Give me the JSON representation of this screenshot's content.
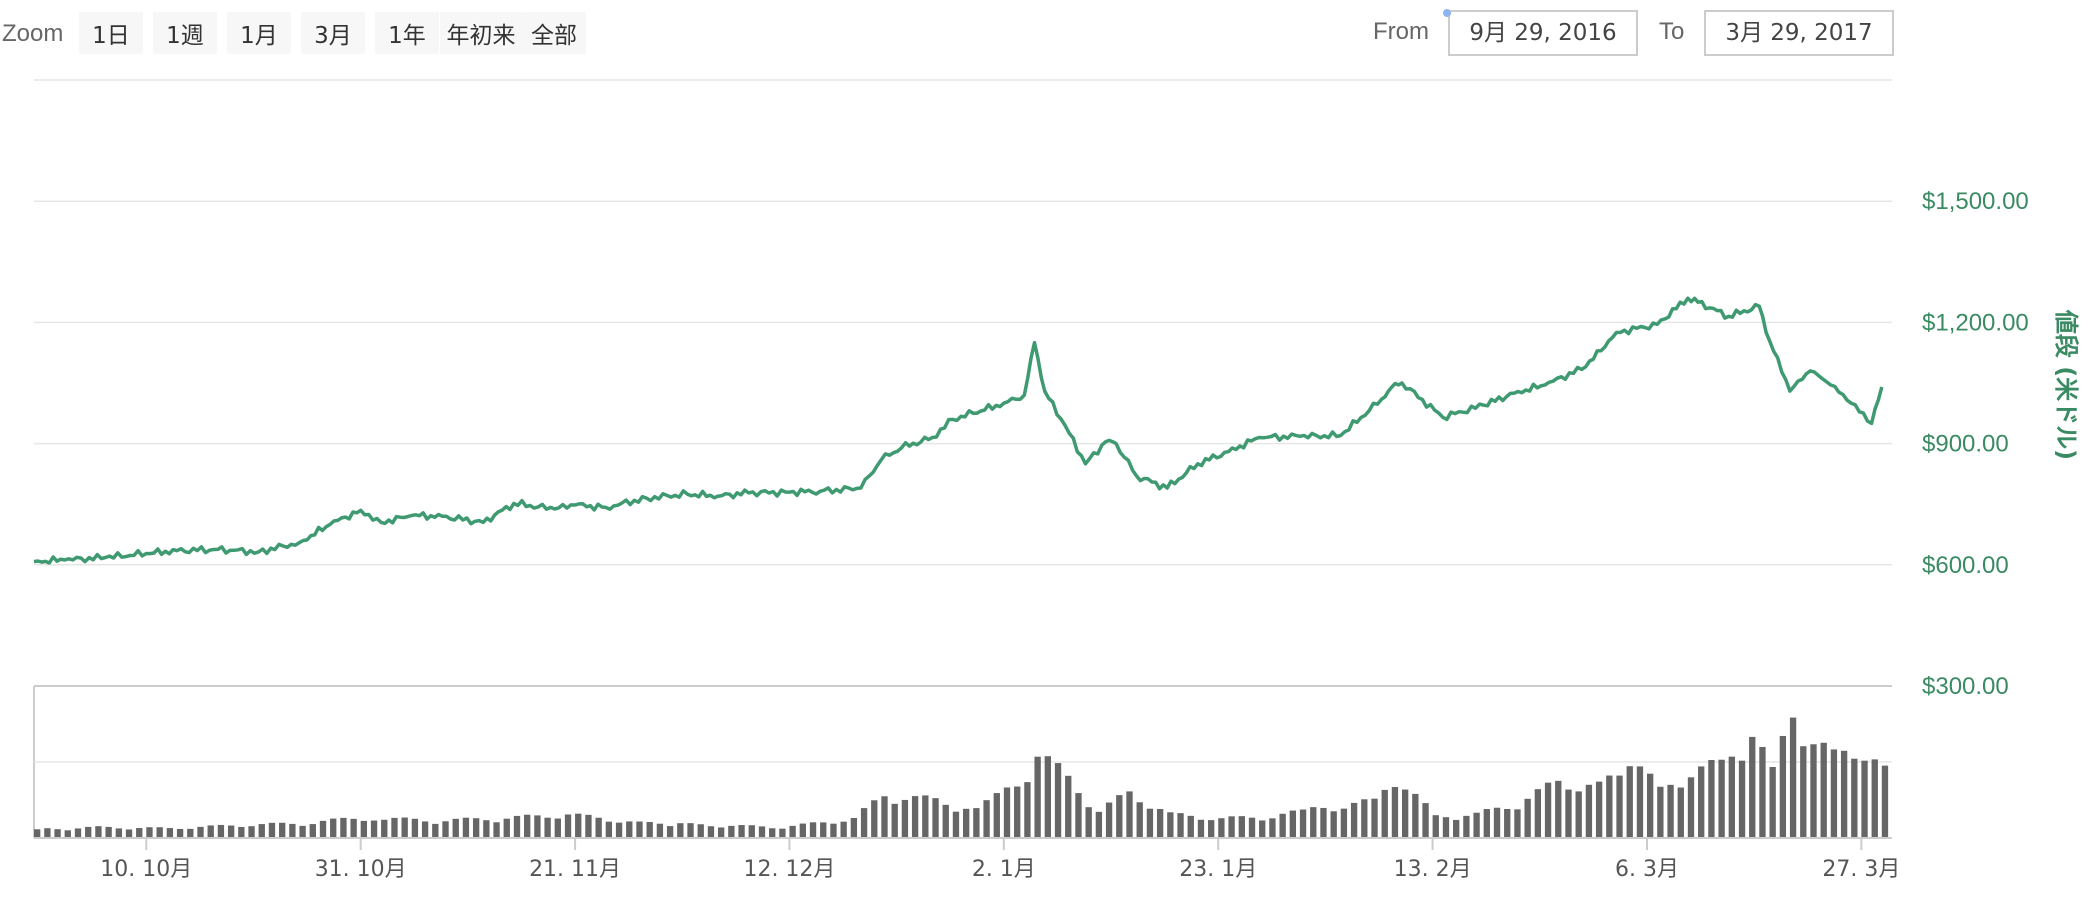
{
  "toolbar": {
    "zoom_label": "Zoom",
    "zoom_buttons": [
      "1日",
      "1週",
      "1月",
      "3月",
      "1年",
      "年初来",
      "全部"
    ],
    "from_label": "From",
    "from_value": "9月 29, 2016",
    "to_label": "To",
    "to_value": "3月 29, 2017"
  },
  "colors": {
    "price_line": "#3f9a72",
    "volume_bars": "#666666",
    "grid": "#e6e6e6",
    "axis_text": "#3a8a63"
  },
  "chart_data": {
    "type": "line",
    "title": "",
    "ylabel": "値段 (米ドル)",
    "y_ticks": [
      "$300.00",
      "$600.00",
      "$900.00",
      "$1,200.00",
      "$1,500.00"
    ],
    "x_ticks": [
      "10. 10月",
      "31. 10月",
      "21. 11月",
      "12. 12月",
      "2. 1月",
      "23. 1月",
      "13. 2月",
      "6. 3月",
      "27. 3月"
    ],
    "ylim": [
      300,
      1800
    ],
    "xlim": [
      "2016-09-29",
      "2017-03-30"
    ],
    "grid": true,
    "series": [
      {
        "x": [
          "2016-09-29",
          "2016-10-02",
          "2016-10-06",
          "2016-10-10",
          "2016-10-13",
          "2016-10-17",
          "2016-10-21",
          "2016-10-25",
          "2016-10-28",
          "2016-10-31",
          "2016-11-02",
          "2016-11-05",
          "2016-11-08",
          "2016-11-12",
          "2016-11-15",
          "2016-11-19",
          "2016-11-21",
          "2016-11-24",
          "2016-11-28",
          "2016-12-02",
          "2016-12-05",
          "2016-12-08",
          "2016-12-12",
          "2016-12-15",
          "2016-12-19",
          "2016-12-21",
          "2016-12-23",
          "2016-12-26",
          "2016-12-28",
          "2016-12-30",
          "2017-01-02",
          "2017-01-04",
          "2017-01-05",
          "2017-01-06",
          "2017-01-08",
          "2017-01-10",
          "2017-01-12",
          "2017-01-13",
          "2017-01-15",
          "2017-01-18",
          "2017-01-21",
          "2017-01-24",
          "2017-01-27",
          "2017-01-31",
          "2017-02-04",
          "2017-02-08",
          "2017-02-09",
          "2017-02-10",
          "2017-02-14",
          "2017-02-18",
          "2017-02-21",
          "2017-02-24",
          "2017-02-28",
          "2017-03-03",
          "2017-03-07",
          "2017-03-10",
          "2017-03-11",
          "2017-03-14",
          "2017-03-17",
          "2017-03-18",
          "2017-03-20",
          "2017-03-22",
          "2017-03-24",
          "2017-03-26",
          "2017-03-28",
          "2017-03-29"
        ],
        "values": [
          608,
          612,
          618,
          628,
          635,
          638,
          632,
          655,
          700,
          735,
          705,
          722,
          720,
          705,
          752,
          738,
          748,
          742,
          765,
          775,
          770,
          778,
          780,
          782,
          790,
          860,
          890,
          915,
          960,
          975,
          1000,
          1020,
          1150,
          1030,
          945,
          850,
          905,
          900,
          820,
          790,
          850,
          880,
          915,
          918,
          920,
          1010,
          1040,
          1050,
          965,
          995,
          1025,
          1045,
          1090,
          1175,
          1195,
          1260,
          1250,
          1215,
          1240,
          1155,
          1030,
          1080,
          1045,
          1000,
          950,
          1040
        ]
      }
    ],
    "volume_series": {
      "x": [
        "2016-09-29",
        "2016-10-05",
        "2016-10-12",
        "2016-10-19",
        "2016-10-26",
        "2016-10-31",
        "2016-11-06",
        "2016-11-13",
        "2016-11-20",
        "2016-11-27",
        "2016-12-04",
        "2016-12-11",
        "2016-12-18",
        "2016-12-21",
        "2016-12-26",
        "2016-12-30",
        "2017-01-03",
        "2017-01-05",
        "2017-01-08",
        "2017-01-11",
        "2017-01-14",
        "2017-01-18",
        "2017-01-23",
        "2017-01-28",
        "2017-02-02",
        "2017-02-07",
        "2017-02-09",
        "2017-02-13",
        "2017-02-17",
        "2017-02-21",
        "2017-02-25",
        "2017-03-01",
        "2017-03-04",
        "2017-03-07",
        "2017-03-10",
        "2017-03-13",
        "2017-03-16",
        "2017-03-18",
        "2017-03-20",
        "2017-03-22",
        "2017-03-24",
        "2017-03-27",
        "2017-03-29"
      ],
      "values": [
        8,
        10,
        9,
        12,
        14,
        20,
        16,
        18,
        22,
        14,
        12,
        10,
        18,
        40,
        35,
        26,
        50,
        80,
        55,
        25,
        42,
        22,
        18,
        20,
        28,
        34,
        58,
        20,
        22,
        32,
        52,
        48,
        76,
        44,
        62,
        68,
        100,
        60,
        120,
        90,
        75,
        85,
        62
      ]
    }
  }
}
